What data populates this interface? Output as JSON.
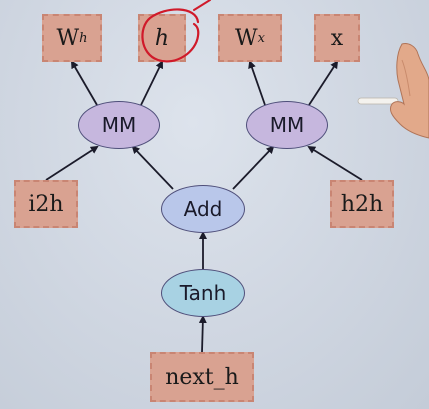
{
  "colors": {
    "background": "#cfd6e2",
    "box_fill": "#d9a291",
    "mm_fill": "#c6b7de",
    "add_fill": "#b9c7ea",
    "tanh_fill": "#a8d2e3",
    "annotation_red": "#d01a2a"
  },
  "nodes": {
    "wh": {
      "base": "W",
      "sub": "h"
    },
    "h": {
      "label": "h"
    },
    "wx": {
      "base": "W",
      "sub": "x"
    },
    "x": {
      "label": "x"
    },
    "mm_left": {
      "label": "MM"
    },
    "mm_right": {
      "label": "MM"
    },
    "i2h": {
      "label": "i2h"
    },
    "add": {
      "label": "Add"
    },
    "h2h": {
      "label": "h2h"
    },
    "tanh": {
      "label": "Tanh"
    },
    "next_h": {
      "label": "next_h"
    }
  },
  "edges": [
    {
      "from": "mm_left",
      "to": "wh"
    },
    {
      "from": "mm_left",
      "to": "h"
    },
    {
      "from": "mm_right",
      "to": "wx"
    },
    {
      "from": "mm_right",
      "to": "x"
    },
    {
      "from": "i2h",
      "to": "mm_left"
    },
    {
      "from": "add",
      "to": "mm_left"
    },
    {
      "from": "add",
      "to": "mm_right"
    },
    {
      "from": "h2h",
      "to": "mm_right"
    },
    {
      "from": "tanh",
      "to": "add"
    },
    {
      "from": "next_h",
      "to": "tanh"
    }
  ],
  "annotation": {
    "type": "circle",
    "target": "h"
  },
  "overlay_icons": [
    "hand-holding-pen-icon"
  ]
}
